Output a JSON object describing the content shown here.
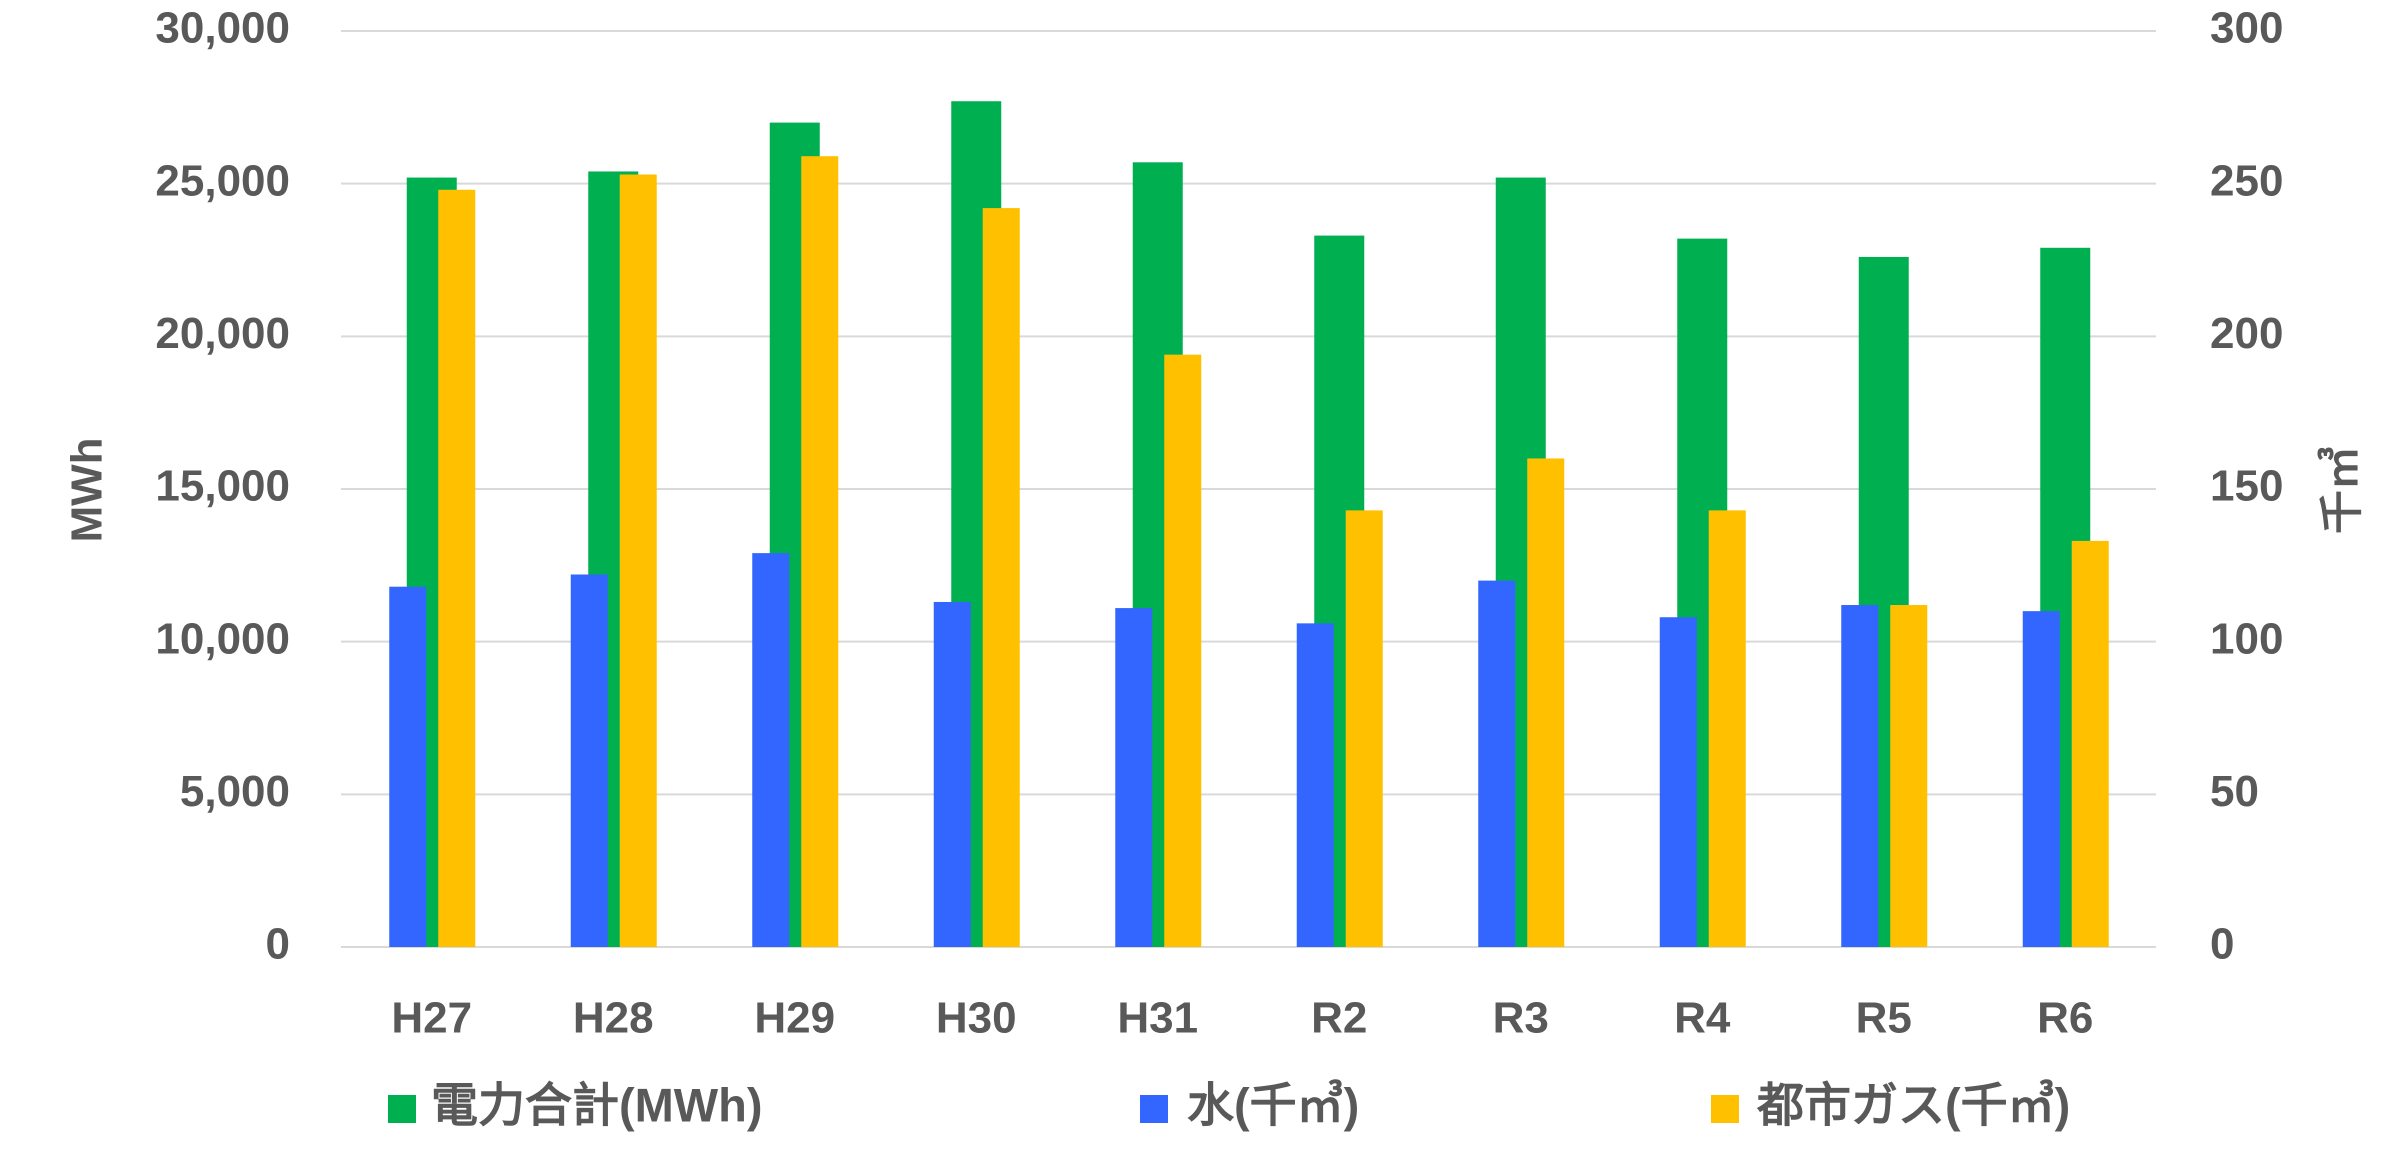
{
  "chart_data": {
    "type": "bar",
    "categories": [
      "H27",
      "H28",
      "H29",
      "H30",
      "H31",
      "R2",
      "R3",
      "R4",
      "R5",
      "R6"
    ],
    "series": [
      {
        "name": "電力合計(MWh)",
        "axis": "left",
        "color": "#00b050",
        "values": [
          25200,
          25400,
          27000,
          27700,
          25700,
          23300,
          25200,
          23200,
          22600,
          22900
        ]
      },
      {
        "name": "水(千㎥)",
        "axis": "right",
        "color": "#3366ff",
        "values": [
          118,
          122,
          129,
          113,
          111,
          106,
          120,
          108,
          112,
          110
        ]
      },
      {
        "name": "都市ガス(千㎥)",
        "axis": "right",
        "color": "#ffc000",
        "values": [
          248,
          253,
          259,
          242,
          194,
          143,
          160,
          143,
          112,
          133
        ]
      }
    ],
    "ylabel": "MWh",
    "y2label": "千㎥",
    "ylim": [
      0,
      30000
    ],
    "y2lim": [
      0,
      300
    ],
    "yticks": [
      "0",
      "5,000",
      "10,000",
      "15,000",
      "20,000",
      "25,000",
      "30,000"
    ],
    "y2ticks": [
      "0",
      "50",
      "100",
      "150",
      "200",
      "250",
      "300"
    ],
    "grid": true,
    "legend": "bottom"
  }
}
